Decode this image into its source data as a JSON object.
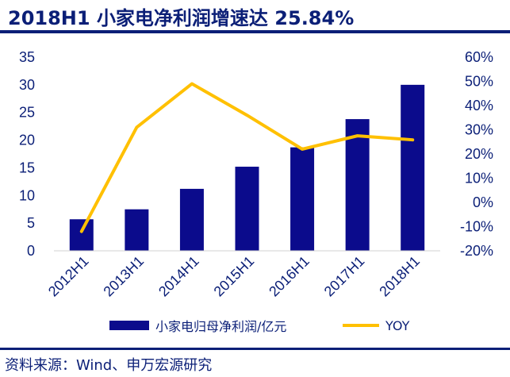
{
  "title": "2018H1 小家电净利润增速达 25.84%",
  "source": "资料来源：Wind、申万宏源研究",
  "colors": {
    "bar": "#0b0b8c",
    "line": "#ffc000",
    "text": "#0b1f77"
  },
  "chart_data": {
    "type": "bar",
    "categories": [
      "2012H1",
      "2013H1",
      "2014H1",
      "2015H1",
      "2016H1",
      "2017H1",
      "2018H1"
    ],
    "series": [
      {
        "name": "小家电归母净利润/亿元",
        "type": "bar",
        "axis": "left",
        "values": [
          5.7,
          7.5,
          11.2,
          15.2,
          18.7,
          23.8,
          30.0
        ]
      },
      {
        "name": "YOY",
        "type": "line",
        "axis": "right",
        "values": [
          -12.0,
          31.0,
          49.0,
          36.0,
          22.0,
          27.5,
          25.84
        ]
      }
    ],
    "y_left": {
      "ticks": [
        "0",
        "5",
        "10",
        "15",
        "20",
        "25",
        "30",
        "35"
      ],
      "ylim": [
        0,
        35
      ]
    },
    "y_right": {
      "ticks": [
        "-20%",
        "-10%",
        "0%",
        "10%",
        "20%",
        "30%",
        "40%",
        "50%",
        "60%"
      ],
      "ylim": [
        -20,
        60
      ]
    },
    "grid": false,
    "legend_position": "bottom"
  }
}
